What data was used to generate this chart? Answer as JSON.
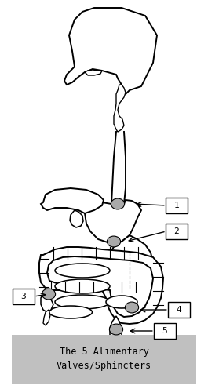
{
  "title": "The 5 Alimentary\nValves/Sphincters",
  "bg_color": "#ffffff",
  "border_color": "#999999",
  "label_bg": "#c0c0c0",
  "label_color": "#000000",
  "body_color": "#ffffff",
  "body_edge_color": "#000000",
  "sphincter_color": "#aaaaaa",
  "figsize": [
    2.65,
    4.96
  ],
  "dpi": 100
}
